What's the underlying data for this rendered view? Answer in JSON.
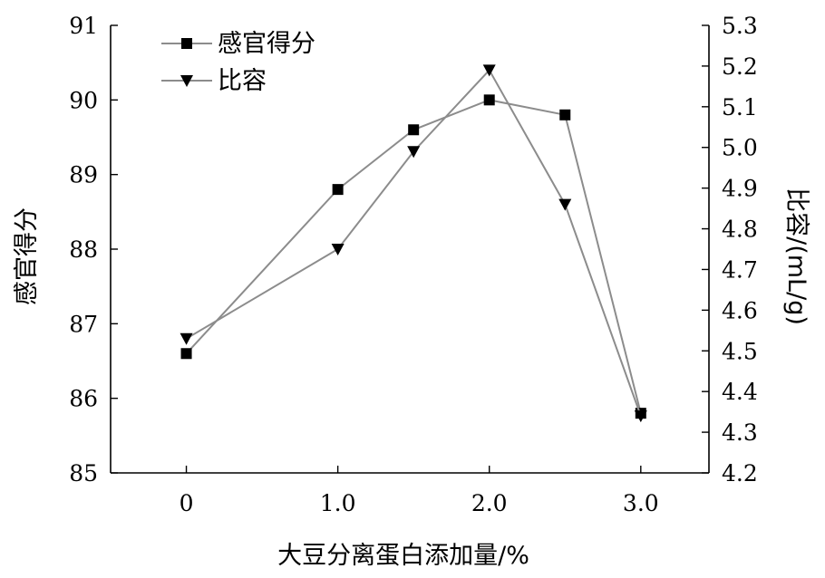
{
  "chart_data": {
    "type": "line",
    "title": "",
    "xlabel": "大豆分离蛋白添加量/%",
    "ylabel": "感官得分",
    "y2label": "比容/(mL/g)",
    "x_ticks": [
      "0",
      "1.0",
      "2.0",
      "3.0"
    ],
    "x_tick_values": [
      0,
      1.0,
      2.0,
      3.0
    ],
    "xlim": [
      -0.5,
      3.45
    ],
    "ylim": [
      85,
      91
    ],
    "y_ticks": [
      "85",
      "86",
      "87",
      "88",
      "89",
      "90",
      "91"
    ],
    "y2lim": [
      4.2,
      5.3
    ],
    "y2_ticks": [
      "4.2",
      "4.3",
      "4.4",
      "4.5",
      "4.6",
      "4.7",
      "4.8",
      "4.9",
      "5.0",
      "5.1",
      "5.2",
      "5.3"
    ],
    "legend_position": "top-left",
    "grid": false,
    "series": [
      {
        "name": "感官得分",
        "axis": "left",
        "marker": "square",
        "x": [
          0,
          1.0,
          1.5,
          2.0,
          2.5,
          3.0
        ],
        "values": [
          86.6,
          88.8,
          89.6,
          90.0,
          89.8,
          85.8
        ]
      },
      {
        "name": "比容",
        "axis": "right",
        "marker": "triangle-down",
        "x": [
          0,
          1.0,
          1.5,
          2.0,
          2.5,
          3.0
        ],
        "values": [
          4.53,
          4.75,
          4.99,
          5.19,
          4.86,
          4.34
        ]
      }
    ],
    "colors": {
      "line": "#8c8c8c",
      "marker": "#000000"
    }
  }
}
